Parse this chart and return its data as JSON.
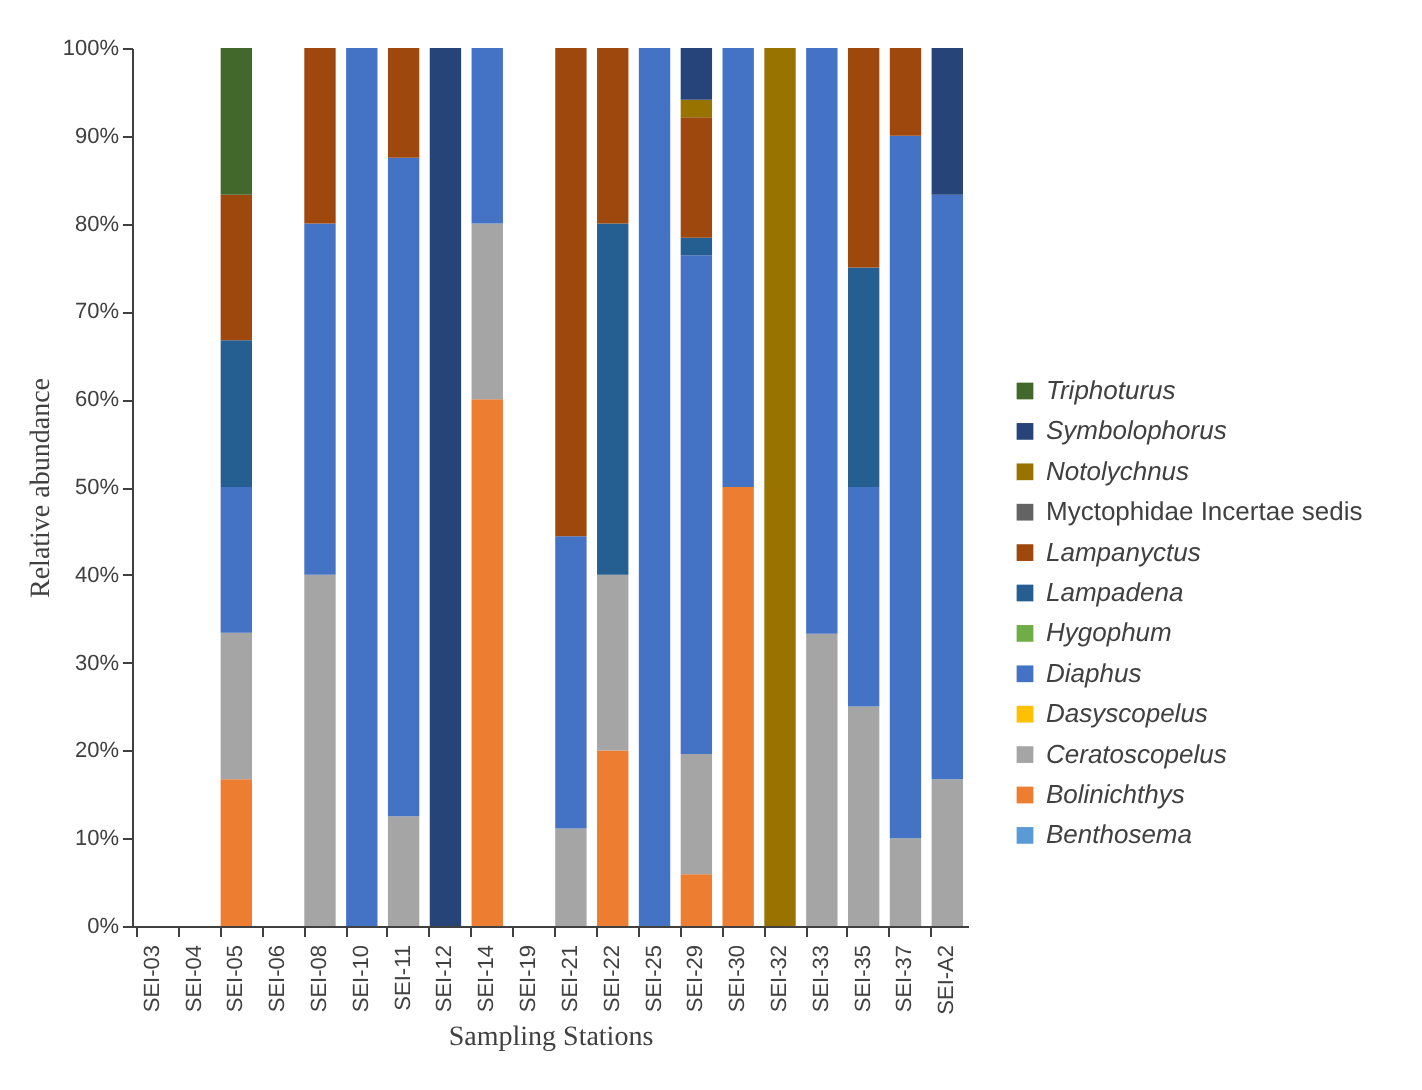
{
  "chart_data": {
    "type": "bar",
    "stacked": true,
    "xlabel": "Sampling Stations",
    "ylabel": "Relative abundance",
    "categories": [
      "SEI-03",
      "SEI-04",
      "SEI-05",
      "SEI-06",
      "SEI-08",
      "SEI-10",
      "SEI-11",
      "SEI-12",
      "SEI-14",
      "SEI-19",
      "SEI-21",
      "SEI-22",
      "SEI-25",
      "SEI-29",
      "SEI-30",
      "SEI-32",
      "SEI-33",
      "SEI-35",
      "SEI-37",
      "SEI-A2"
    ],
    "series": [
      {
        "name": "Benthosema",
        "color": "#5b9bd5",
        "values": [
          null,
          null,
          null,
          null,
          null,
          null,
          null,
          null,
          null,
          null,
          null,
          null,
          null,
          null,
          null,
          null,
          null,
          null,
          null,
          null
        ]
      },
      {
        "name": "Bolinichthys",
        "color": "#ed7d31",
        "values": [
          null,
          null,
          16.7,
          null,
          null,
          null,
          null,
          null,
          60,
          null,
          null,
          20,
          null,
          5.9,
          50,
          null,
          null,
          null,
          null,
          null
        ]
      },
      {
        "name": "Ceratoscopelus",
        "color": "#a5a5a5",
        "values": [
          null,
          null,
          16.7,
          null,
          40,
          null,
          12.5,
          null,
          20,
          null,
          11.1,
          20,
          null,
          13.7,
          null,
          null,
          33.3,
          25,
          10,
          16.7
        ]
      },
      {
        "name": "Dasyscopelus",
        "color": "#ffc000",
        "values": [
          null,
          null,
          null,
          null,
          null,
          null,
          null,
          null,
          null,
          null,
          null,
          null,
          null,
          null,
          null,
          null,
          null,
          null,
          null,
          null
        ]
      },
      {
        "name": "Diaphus",
        "color": "#4472c4",
        "values": [
          null,
          null,
          16.6,
          null,
          40,
          100,
          75,
          null,
          20,
          null,
          33.3,
          null,
          100,
          56.8,
          50,
          null,
          66.7,
          25,
          80,
          66.6
        ]
      },
      {
        "name": "Hygophum",
        "color": "#70ad47",
        "values": [
          null,
          null,
          null,
          null,
          null,
          null,
          null,
          null,
          null,
          null,
          null,
          null,
          null,
          null,
          null,
          null,
          null,
          null,
          null,
          null
        ]
      },
      {
        "name": "Lampadena",
        "color": "#255e91",
        "values": [
          null,
          null,
          16.7,
          null,
          null,
          null,
          null,
          null,
          null,
          null,
          null,
          40,
          null,
          2.0,
          null,
          null,
          null,
          25,
          null,
          null
        ]
      },
      {
        "name": "Lampanyctus",
        "color": "#9e480e",
        "values": [
          null,
          null,
          16.6,
          null,
          20,
          null,
          12.5,
          null,
          null,
          null,
          55.6,
          20,
          null,
          13.7,
          null,
          null,
          null,
          25,
          10,
          null
        ]
      },
      {
        "name": "Myctophidae Incertae sedis",
        "color": "#636363",
        "values": [
          null,
          null,
          null,
          null,
          null,
          null,
          null,
          null,
          null,
          null,
          null,
          null,
          null,
          null,
          null,
          null,
          null,
          null,
          null,
          null
        ]
      },
      {
        "name": "Notolychnus",
        "color": "#997300",
        "values": [
          null,
          null,
          null,
          null,
          null,
          null,
          null,
          null,
          null,
          null,
          null,
          null,
          null,
          2.0,
          null,
          100,
          null,
          null,
          null,
          null
        ]
      },
      {
        "name": "Symbolophorus",
        "color": "#264478",
        "values": [
          null,
          null,
          null,
          null,
          null,
          null,
          null,
          100,
          null,
          null,
          null,
          null,
          null,
          5.9,
          null,
          null,
          null,
          null,
          null,
          16.7
        ]
      },
      {
        "name": "Triphoturus",
        "color": "#43682b",
        "values": [
          null,
          null,
          16.7,
          null,
          null,
          null,
          null,
          null,
          null,
          null,
          null,
          null,
          null,
          null,
          null,
          null,
          null,
          null,
          null,
          null
        ]
      }
    ],
    "ylim": [
      0,
      100
    ],
    "yticks": [
      {
        "value": 0,
        "label": "0%"
      },
      {
        "value": 10,
        "label": "10%"
      },
      {
        "value": 20,
        "label": "20%"
      },
      {
        "value": 30,
        "label": "30%"
      },
      {
        "value": 40,
        "label": "40%"
      },
      {
        "value": 50,
        "label": "50%"
      },
      {
        "value": 60,
        "label": "60%"
      },
      {
        "value": 70,
        "label": "70%"
      },
      {
        "value": 80,
        "label": "80%"
      },
      {
        "value": 90,
        "label": "90%"
      },
      {
        "value": 100,
        "label": "100%"
      }
    ],
    "grid": false,
    "legend": "right"
  }
}
